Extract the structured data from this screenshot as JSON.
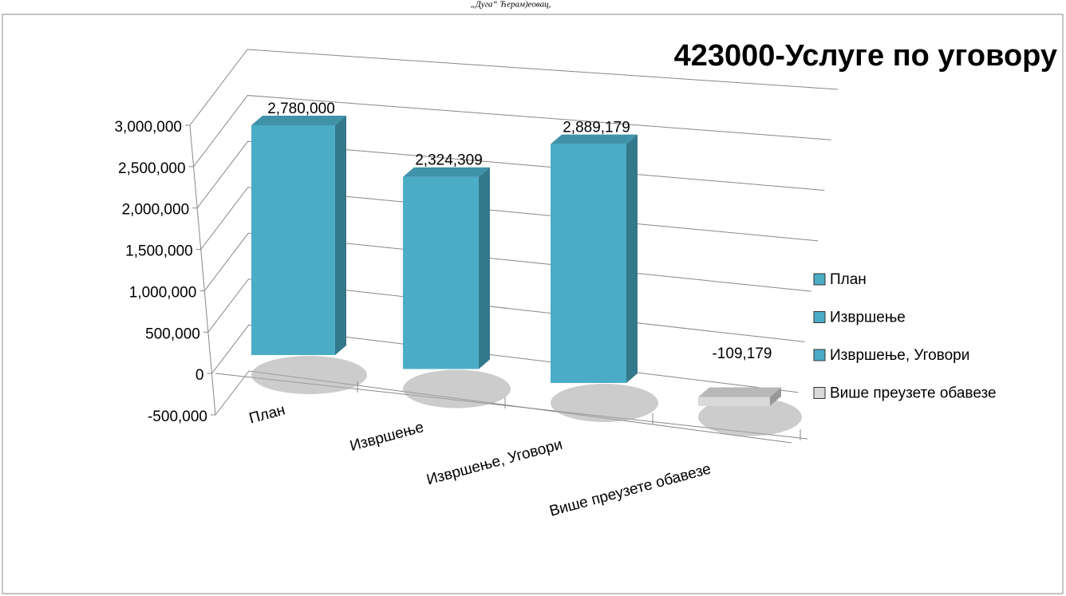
{
  "header_text": "„Дуга“ Ћерам)еовац,",
  "chart_data": {
    "type": "bar3d",
    "title": "423000-Услуге по уговору",
    "categories": [
      "План",
      "Извршење",
      "Извршење, Уговори",
      "Више преузете обавезе"
    ],
    "values": [
      2780000,
      2324309,
      2889179,
      -109179
    ],
    "value_labels": [
      "2,780,000",
      "2,324,309",
      "2,889,179",
      "-109,179"
    ],
    "colors": [
      "#4bacc6",
      "#4bacc6",
      "#4bacc6",
      "#d9d9d9"
    ],
    "ylim": [
      -500000,
      3000000
    ],
    "yticks": [
      {
        "value": -500000,
        "label": "-500,000"
      },
      0,
      {
        "value": 500000,
        "label": "500,000"
      },
      {
        "value": 1000000,
        "label": "1,000,000"
      },
      {
        "value": 1500000,
        "label": "1,500,000"
      },
      {
        "value": 2000000,
        "label": "2,000,000"
      },
      {
        "value": 2500000,
        "label": "2,500,000"
      },
      {
        "value": 3000000,
        "label": "3,000,000"
      }
    ],
    "grid": true,
    "legend": "right"
  }
}
